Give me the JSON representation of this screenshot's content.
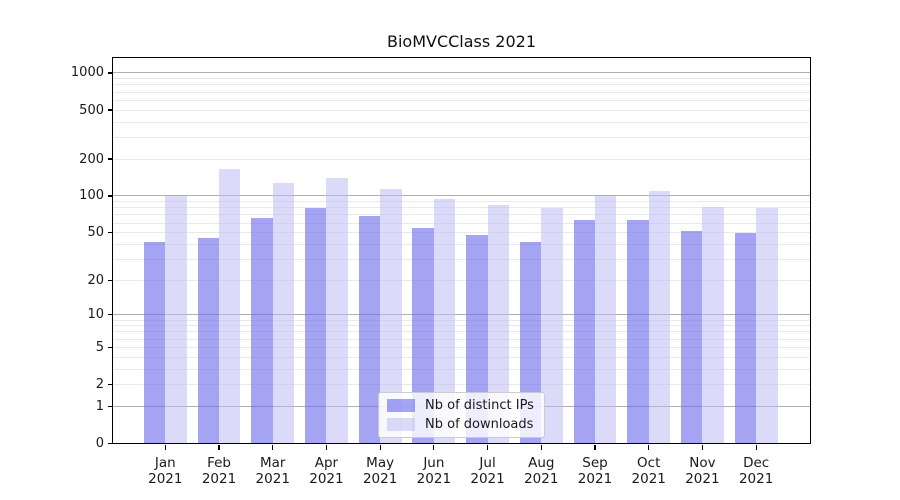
{
  "title": "BioMVCClass 2021",
  "chart_data": {
    "type": "bar",
    "title": "BioMVCClass 2021",
    "categories": [
      "Jan 2021",
      "Feb 2021",
      "Mar 2021",
      "Apr 2021",
      "May 2021",
      "Jun 2021",
      "Jul 2021",
      "Aug 2021",
      "Sep 2021",
      "Oct 2021",
      "Nov 2021",
      "Dec 2021"
    ],
    "series": [
      {
        "name": "Nb of distinct IPs",
        "color": "#a6a6f2",
        "fill": "rgba(108,108,236,0.62)",
        "values": [
          42,
          45,
          66,
          79,
          69,
          55,
          48,
          42,
          63,
          64,
          52,
          50
        ]
      },
      {
        "name": "Nb of downloads",
        "color": "#dcdcf8",
        "fill": "rgba(186,186,244,0.52)",
        "values": [
          100,
          165,
          128,
          140,
          115,
          95,
          85,
          80,
          100,
          110,
          81,
          79
        ]
      }
    ],
    "y_scale": "log1p",
    "y_ticks": [
      0,
      1,
      2,
      5,
      10,
      20,
      50,
      100,
      200,
      500,
      1000
    ],
    "grid_major_at": [
      1,
      10,
      100,
      1000
    ],
    "ylim": [
      0,
      1310
    ],
    "xlabel": "",
    "ylabel": "",
    "grid": true,
    "legend_position": "lower center",
    "colors": {
      "grid_major": "#b0b0b0",
      "grid_minor": "#e9e9ec",
      "axis": "#000000",
      "background": "#ffffff",
      "text": "#1a1a1a"
    }
  }
}
